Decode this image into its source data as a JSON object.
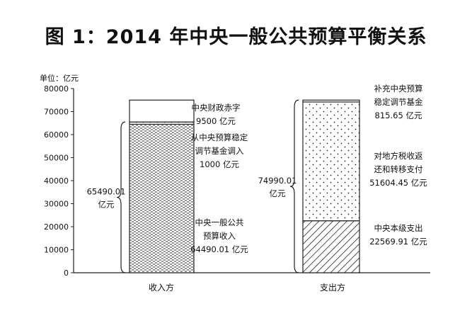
{
  "title": "图 1：2014 年中央一般公共预算平衡关系",
  "chart_data": {
    "type": "bar",
    "stacked": true,
    "ylabel": "单位：亿元",
    "ylim": [
      0,
      80000
    ],
    "yticks": [
      0,
      10000,
      20000,
      30000,
      40000,
      50000,
      60000,
      70000,
      80000
    ],
    "grid": false,
    "categories": [
      "收入方",
      "支出方"
    ],
    "bars": [
      {
        "category": "收入方",
        "segments": [
          {
            "lines": [
              "中央一般公共",
              "预算收入",
              "64490.01 亿元"
            ],
            "value": 64490.01,
            "pattern": "brick"
          },
          {
            "lines": [
              "从中央预算稳定",
              "调节基金调入",
              "1000 亿元"
            ],
            "value": 1000,
            "pattern": "dots"
          },
          {
            "lines": [
              "中央财政赤字",
              "9500 亿元"
            ],
            "value": 9500,
            "pattern": "none"
          }
        ],
        "brace": {
          "lines": [
            "65490.01",
            "亿元"
          ],
          "value": 65490.01
        }
      },
      {
        "category": "支出方",
        "segments": [
          {
            "lines": [
              "中央本级支出",
              "22569.91 亿元"
            ],
            "value": 22569.91,
            "pattern": "hatch"
          },
          {
            "lines": [
              "对地方税收返",
              "还和转移支付",
              "51604.45 亿元"
            ],
            "value": 51604.45,
            "pattern": "dots"
          },
          {
            "lines": [
              "补充中央预算",
              "稳定调节基金",
              "815.65 亿元"
            ],
            "value": 815.65,
            "pattern": "none"
          }
        ],
        "brace": {
          "lines": [
            "74990.01",
            "亿元"
          ],
          "value": 74990.01
        }
      }
    ]
  }
}
